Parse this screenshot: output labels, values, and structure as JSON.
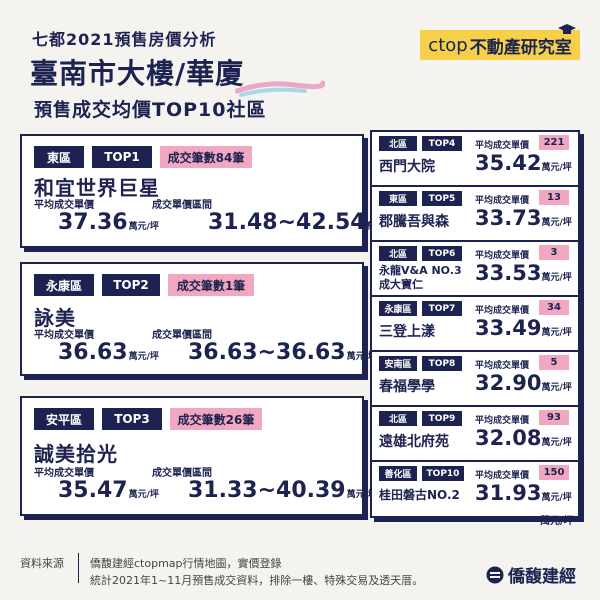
{
  "header": {
    "subtitle": "七都2021預售房價分析",
    "title": "臺南市大樓/華廈",
    "title2_prefix": "預售",
    "title2_bold": "成交均價TOP10社區",
    "logo": "不動產研究室",
    "logo_ct": "ctop"
  },
  "left_cards": [
    {
      "district": "東區",
      "rank": "TOP1",
      "count": "成交筆數84筆",
      "name": "和宜世界巨星",
      "avg_label": "平均成交單價",
      "avg": "37.36",
      "range_label": "成交單價區間",
      "range": "31.48~42.54",
      "unit": "萬元/坪"
    },
    {
      "district": "永康區",
      "rank": "TOP2",
      "count": "成交筆數1筆",
      "name": "詠美",
      "avg_label": "平均成交單價",
      "avg": "36.63",
      "range_label": "成交單價區間",
      "range": "36.63~36.63",
      "unit": "萬元/坪"
    },
    {
      "district": "安平區",
      "rank": "TOP3",
      "count": "成交筆數26筆",
      "name": "誠美拾光",
      "avg_label": "平均成交單價",
      "avg": "35.47",
      "range_label": "成交單價區間",
      "range": "31.33~40.39",
      "unit": "萬元/坪"
    }
  ],
  "right_cards": [
    {
      "district": "北區",
      "rank": "TOP4",
      "name": "西門大院",
      "label": "平均成交單價",
      "count": "221",
      "avg": "35.42",
      "unit": "萬元/坪"
    },
    {
      "district": "東區",
      "rank": "TOP5",
      "name": "郡騰吾與森",
      "label": "平均成交單價",
      "count": "13",
      "avg": "33.73",
      "unit": "萬元/坪"
    },
    {
      "district": "北區",
      "rank": "TOP6",
      "name": "永龍V&A NO.3",
      "name2": "成大寶仁",
      "label": "平均成交單價",
      "count": "3",
      "avg": "33.53",
      "unit": "萬元/坪"
    },
    {
      "district": "永康區",
      "rank": "TOP7",
      "name": "三登上漾",
      "label": "平均成交單價",
      "count": "34",
      "avg": "33.49",
      "unit": "萬元/坪"
    },
    {
      "district": "安南區",
      "rank": "TOP8",
      "name": "春福學學",
      "label": "平均成交單價",
      "count": "5",
      "avg": "32.90",
      "unit": "萬元/坪"
    },
    {
      "district": "北區",
      "rank": "TOP9",
      "name": "遠雄北府苑",
      "label": "平均成交單價",
      "count": "93",
      "avg": "32.08",
      "unit": "萬元/坪"
    },
    {
      "district": "善化區",
      "rank": "TOP10",
      "name": "桂田磐古NO.2",
      "label": "平均成交單價",
      "count": "150",
      "avg": "31.93",
      "unit": "萬元/坪"
    }
  ],
  "unit_footer": "萬元/坪",
  "footer": {
    "source_label": "資料來源",
    "source_line1": "僑馥建經ctopmap行情地圖，實價登錄",
    "source_line2": "統計2021年1~11月預售成交資料，排除一樓、特殊交易及透天厝。",
    "brand": "僑馥建經"
  }
}
